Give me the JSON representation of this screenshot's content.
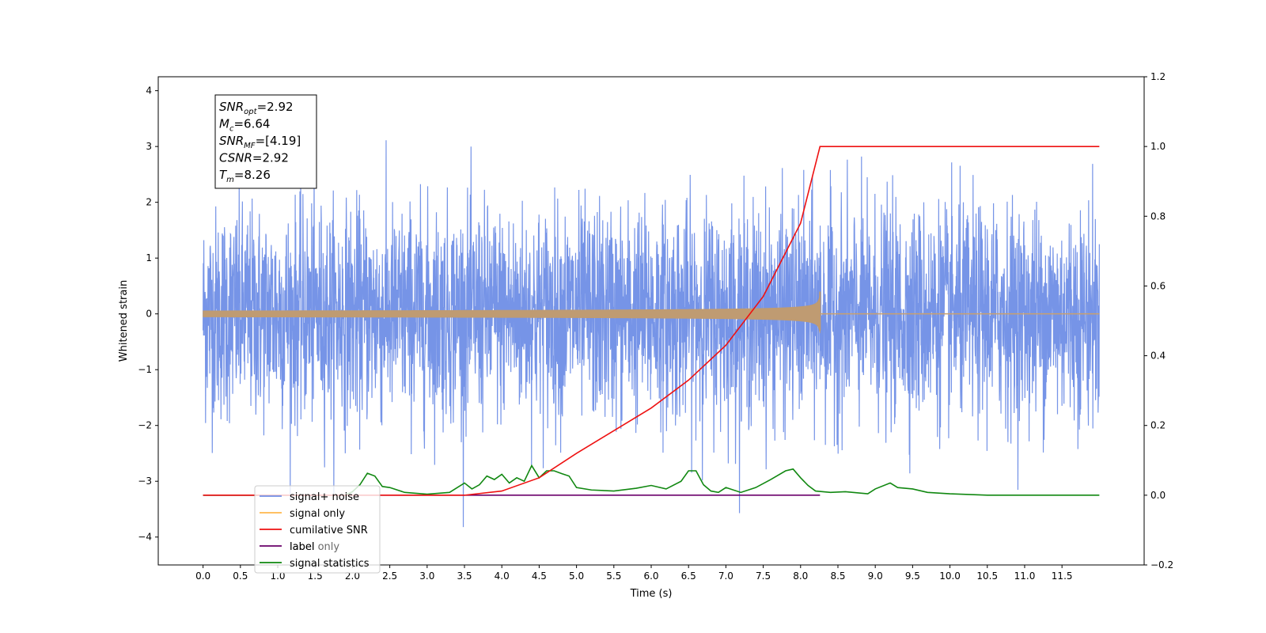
{
  "chart_data": {
    "type": "line",
    "xlabel": "Time (s)",
    "ylabel": "Whitened strain",
    "xlim": [
      -0.6,
      12.6
    ],
    "ylim": [
      -4.5,
      4.25
    ],
    "y2lim": [
      -0.2,
      1.2
    ],
    "xticks": [
      "0.0",
      "0.5",
      "1.0",
      "1.5",
      "2.0",
      "2.5",
      "3.0",
      "3.5",
      "4.0",
      "4.5",
      "5.0",
      "5.5",
      "6.0",
      "6.5",
      "7.0",
      "7.5",
      "8.0",
      "8.5",
      "9.0",
      "9.5",
      "10.0",
      "10.5",
      "11.0",
      "11.5"
    ],
    "yticks": [
      "4",
      "3",
      "2",
      "1",
      "0",
      "−1",
      "−2",
      "−3",
      "−4"
    ],
    "y2ticks": [
      "1.2",
      "1.0",
      "0.8",
      "0.6",
      "0.4",
      "0.2",
      "0.0",
      "−0.2"
    ],
    "grid": false,
    "legend_position": "lower-left",
    "annotation": {
      "lines": [
        {
          "main": "SNR",
          "sub": "opt",
          "rest": "=2.92"
        },
        {
          "main": "M",
          "sub": "c",
          "rest": "=6.64"
        },
        {
          "main": "SNR",
          "sub": "MF",
          "rest": "=[4.19]"
        },
        {
          "main": "CSNR",
          "sub": "",
          "rest": "=2.92"
        },
        {
          "main": "T",
          "sub": "m",
          "rest": "=8.26"
        }
      ]
    },
    "series": [
      {
        "name": "signal+ noise",
        "color": "#6f8ee6",
        "kind": "noise",
        "x_range": [
          0,
          12
        ],
        "amplitude_std": 0.95
      },
      {
        "name": "signal only",
        "color": "#ffb74d",
        "kind": "chirp",
        "merger_time": 8.26,
        "peak_amplitude": 0.4
      },
      {
        "name": "cumilative SNR",
        "color": "#ee1111",
        "axis": "right",
        "x": [
          0,
          3.0,
          3.5,
          4.0,
          4.5,
          5.0,
          5.5,
          6.0,
          6.5,
          7.0,
          7.5,
          8.0,
          8.26,
          12.0
        ],
        "y": [
          0,
          0,
          0.0,
          0.012,
          0.05,
          0.12,
          0.185,
          0.25,
          0.33,
          0.43,
          0.57,
          0.78,
          1.0,
          1.0
        ]
      },
      {
        "name": "label",
        "color": "#6a006a",
        "axis": "right",
        "x": [
          0,
          8.26
        ],
        "y": [
          0,
          0
        ]
      },
      {
        "name": "label only",
        "color": "#bbbbbb",
        "hidden_in_legend_overlap": true
      },
      {
        "name": "signal statistics",
        "color": "#118811",
        "axis": "right",
        "x": [
          0.0,
          1.9,
          2.0,
          2.1,
          2.2,
          2.3,
          2.4,
          2.5,
          2.7,
          3.0,
          3.3,
          3.5,
          3.6,
          3.7,
          3.8,
          3.9,
          4.0,
          4.1,
          4.2,
          4.3,
          4.4,
          4.5,
          4.6,
          4.7,
          4.8,
          4.9,
          5.0,
          5.2,
          5.5,
          5.8,
          6.0,
          6.2,
          6.4,
          6.5,
          6.6,
          6.7,
          6.8,
          6.9,
          7.0,
          7.2,
          7.4,
          7.6,
          7.8,
          7.9,
          8.0,
          8.1,
          8.2,
          8.4,
          8.6,
          8.9,
          9.0,
          9.2,
          9.3,
          9.4,
          9.5,
          9.7,
          10.0,
          10.5,
          12.0
        ],
        "y": [
          0.0,
          0.0,
          0.01,
          0.03,
          0.063,
          0.055,
          0.025,
          0.022,
          0.008,
          0.003,
          0.008,
          0.035,
          0.018,
          0.03,
          0.055,
          0.045,
          0.06,
          0.035,
          0.05,
          0.04,
          0.085,
          0.05,
          0.07,
          0.07,
          0.062,
          0.055,
          0.022,
          0.015,
          0.012,
          0.02,
          0.028,
          0.018,
          0.04,
          0.07,
          0.07,
          0.03,
          0.012,
          0.008,
          0.022,
          0.008,
          0.022,
          0.045,
          0.07,
          0.075,
          0.05,
          0.028,
          0.012,
          0.008,
          0.01,
          0.004,
          0.018,
          0.035,
          0.022,
          0.02,
          0.018,
          0.008,
          0.004,
          0.0,
          0.0
        ]
      }
    ]
  }
}
